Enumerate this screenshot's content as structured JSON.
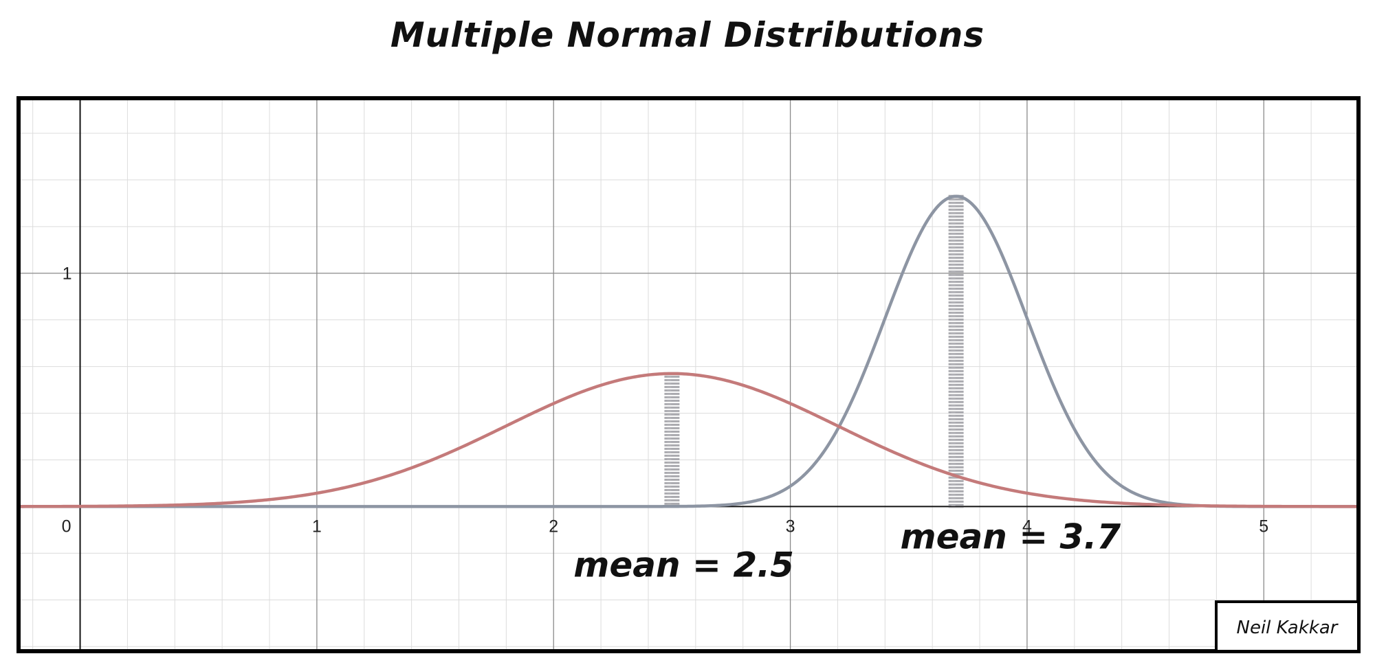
{
  "chart_data": {
    "type": "line",
    "title": "Multiple Normal Distributions",
    "xlabel": "",
    "ylabel": "",
    "xlim": [
      -0.26,
      5.4
    ],
    "ylim": [
      -0.62,
      1.75
    ],
    "x_ticks": [
      "0",
      "1",
      "2",
      "3",
      "4",
      "5"
    ],
    "y_ticks": [
      "1"
    ],
    "grid": true,
    "series": [
      {
        "mean": 2.5,
        "sd": 0.7,
        "color": "#c47a7a"
      },
      {
        "mean": 3.7,
        "sd": 0.3,
        "color": "#8d95a3"
      }
    ],
    "mean_markers": [
      {
        "x": 2.5,
        "color": "#9b9ba1"
      },
      {
        "x": 3.7,
        "color": "#9b9ba1"
      }
    ],
    "annotations": [
      {
        "text": "mean = 2.5",
        "x": 2.55,
        "y": -0.3
      },
      {
        "text": "mean = 3.7",
        "x": 3.93,
        "y": -0.18
      }
    ],
    "credit": "Neil Kakkar"
  }
}
